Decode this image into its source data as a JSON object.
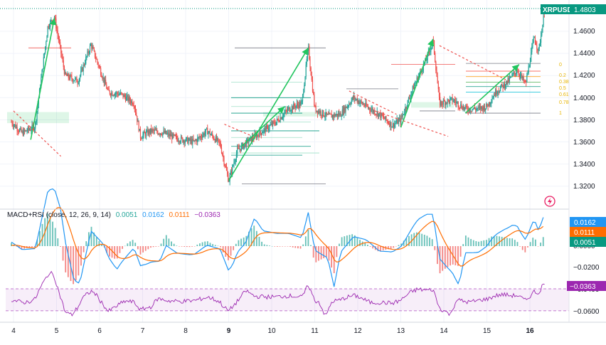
{
  "header": {
    "symbol": "XRPUSD",
    "price": "1.4803"
  },
  "price_axis": {
    "ticks": [
      "1.4600",
      "1.4400",
      "1.4200",
      "1.4000",
      "1.3800",
      "1.3600",
      "1.3400",
      "1.3200"
    ]
  },
  "fib_labels": [
    "0",
    "0.2",
    "0.38",
    "0.5",
    "0.61",
    "0.78",
    "1"
  ],
  "indicator": {
    "title": "MACD+RSI (close, 12, 26, 9, 14)",
    "v1": "0.0051",
    "v2": "0.0162",
    "v3": "0.0111",
    "v4": "−0.0363",
    "badges": {
      "b1": "0.0162",
      "b2": "0.0111",
      "b3": "0.0051",
      "b4": "−0.0363"
    },
    "ticks": [
      "0.0000",
      "−0.0200",
      "−0.0400",
      "−0.0600"
    ]
  },
  "time_axis": {
    "labels": [
      "4",
      "5",
      "6",
      "7",
      "8",
      "9",
      "10",
      "11",
      "12",
      "13",
      "14",
      "15",
      "16"
    ],
    "bold": [
      "9",
      "16"
    ]
  },
  "colors": {
    "up": "#26a69a",
    "down": "#ef5350",
    "macd": "#2196f3",
    "signal": "#ff6d00",
    "rsi": "#9c27b0",
    "accent": "#089981",
    "arrow": "#22c55e"
  },
  "chart_data": {
    "type": "candlestick",
    "title": "XRPUSD",
    "x": [
      "4",
      "5",
      "6",
      "7",
      "8",
      "9",
      "10",
      "11",
      "12",
      "13",
      "14",
      "15",
      "16"
    ],
    "ylim": [
      1.31,
      1.48
    ],
    "price_path": [
      [
        3.95,
        1.378
      ],
      [
        4.2,
        1.368
      ],
      [
        4.5,
        1.374
      ],
      [
        4.8,
        1.465
      ],
      [
        4.95,
        1.473
      ],
      [
        5.2,
        1.42
      ],
      [
        5.5,
        1.415
      ],
      [
        5.8,
        1.448
      ],
      [
        6.2,
        1.405
      ],
      [
        6.5,
        1.403
      ],
      [
        6.8,
        1.395
      ],
      [
        6.95,
        1.365
      ],
      [
        7.2,
        1.37
      ],
      [
        7.5,
        1.368
      ],
      [
        7.8,
        1.363
      ],
      [
        8.2,
        1.36
      ],
      [
        8.5,
        1.37
      ],
      [
        8.8,
        1.358
      ],
      [
        9.0,
        1.325
      ],
      [
        9.2,
        1.352
      ],
      [
        9.5,
        1.362
      ],
      [
        9.8,
        1.37
      ],
      [
        10.1,
        1.378
      ],
      [
        10.4,
        1.39
      ],
      [
        10.7,
        1.395
      ],
      [
        10.85,
        1.445
      ],
      [
        11.0,
        1.39
      ],
      [
        11.3,
        1.383
      ],
      [
        11.6,
        1.385
      ],
      [
        11.9,
        1.4
      ],
      [
        12.2,
        1.392
      ],
      [
        12.5,
        1.385
      ],
      [
        12.8,
        1.375
      ],
      [
        13.0,
        1.38
      ],
      [
        13.3,
        1.41
      ],
      [
        13.6,
        1.435
      ],
      [
        13.75,
        1.452
      ],
      [
        13.9,
        1.395
      ],
      [
        14.2,
        1.398
      ],
      [
        14.5,
        1.39
      ],
      [
        14.8,
        1.39
      ],
      [
        15.0,
        1.392
      ],
      [
        15.2,
        1.405
      ],
      [
        15.5,
        1.415
      ],
      [
        15.7,
        1.425
      ],
      [
        15.9,
        1.412
      ],
      [
        16.1,
        1.455
      ],
      [
        16.2,
        1.442
      ],
      [
        16.35,
        1.48
      ]
    ],
    "indicator": {
      "name": "MACD+RSI (close, 12, 26, 9, 14)",
      "series": [
        {
          "name": "MACD",
          "last": 0.0162
        },
        {
          "name": "Signal",
          "last": 0.0111
        },
        {
          "name": "Histogram",
          "last": 0.0051
        },
        {
          "name": "RSI",
          "last": -0.0363
        }
      ],
      "ylim": [
        -0.066,
        0.023
      ]
    }
  }
}
